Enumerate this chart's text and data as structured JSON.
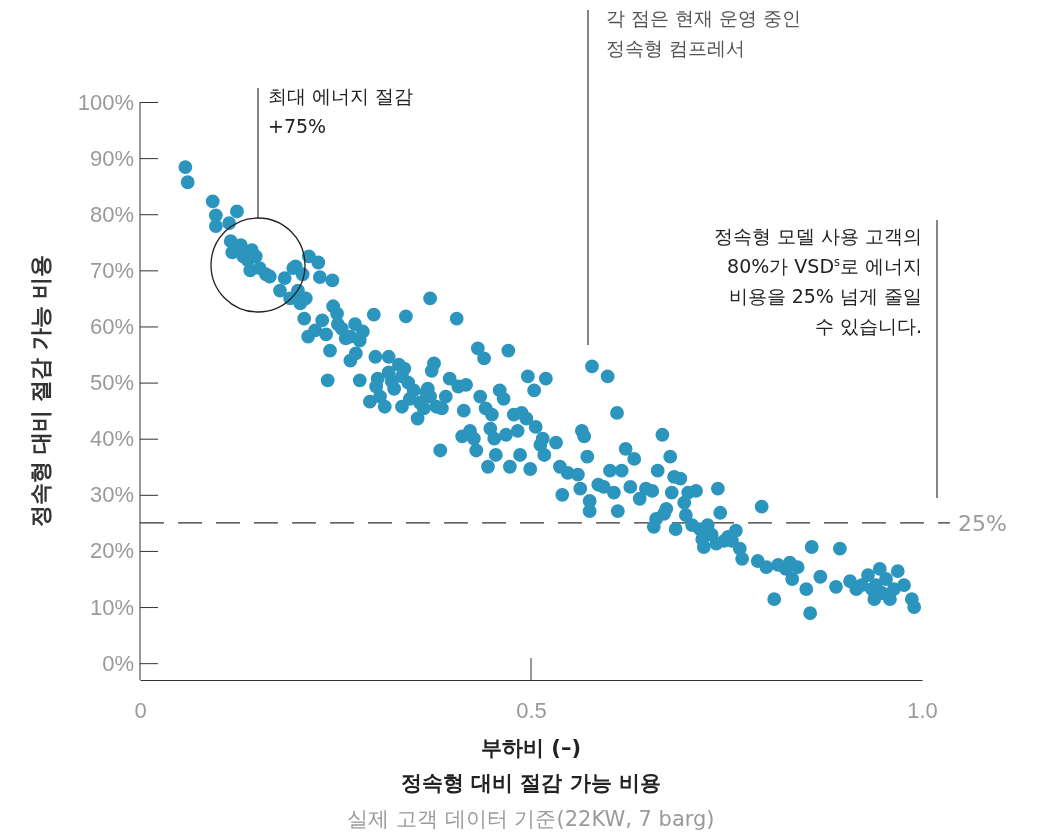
{
  "chart_data": {
    "type": "scatter",
    "title": "정속형 대비 절감 가능 비용",
    "subtitle": "실제 고객 데이터 기준(22KW, 7 barg)",
    "xlabel": "부하비 (–)",
    "ylabel": "정속형 대비 절감 가능 비용",
    "xlim": [
      0,
      1.0
    ],
    "xticks": [
      0,
      0.5,
      {
        "value": 1.0,
        "label": "1.0"
      }
    ],
    "ylim": [
      -3,
      100
    ],
    "yticks": [
      {
        "value": 0,
        "label": "0%"
      },
      {
        "value": 10,
        "label": "10%"
      },
      {
        "value": 20,
        "label": "20%"
      },
      {
        "value": 30,
        "label": "30%"
      },
      {
        "value": 40,
        "label": "40%"
      },
      {
        "value": 50,
        "label": "50%"
      },
      {
        "value": 60,
        "label": "60%"
      },
      {
        "value": 70,
        "label": "70%"
      },
      {
        "value": 80,
        "label": "80%"
      },
      {
        "value": 90,
        "label": "90%"
      },
      {
        "value": 100,
        "label": "100%"
      }
    ],
    "grid": false,
    "marker": "circle",
    "ref_lines": [
      {
        "axis": "y",
        "value": 25,
        "label": "25%",
        "line_style": "dashed",
        "color": "#333333"
      }
    ],
    "annotations": [
      "최대 에너지 절감\n+75%",
      "각 점은 현재 운영 중인\n정속형 컴프레서",
      "정속형 모델 사용 고객의\n80%가 VSD$^{s}$로 에너지\n비용을 25% 넘게 줄일\n수 있습니다."
    ],
    "series": [
      {
        "color": "#2b95bd",
        "x": [
          0.058,
          0.061,
          0.093,
          0.097,
          0.097,
          0.114,
          0.124,
          0.116,
          0.118,
          0.129,
          0.132,
          0.138,
          0.143,
          0.148,
          0.141,
          0.153,
          0.161,
          0.166,
          0.179,
          0.185,
          0.196,
          0.199,
          0.192,
          0.202,
          0.208,
          0.205,
          0.212,
          0.216,
          0.228,
          0.23,
          0.246,
          0.21,
          0.215,
          0.224,
          0.233,
          0.238,
          0.243,
          0.247,
          0.252,
          0.253,
          0.258,
          0.263,
          0.24,
          0.269,
          0.275,
          0.281,
          0.285,
          0.269,
          0.276,
          0.281,
          0.299,
          0.301,
          0.304,
          0.294,
          0.302,
          0.313,
          0.307,
          0.318,
          0.318,
          0.322,
          0.325,
          0.331,
          0.335,
          0.338,
          0.34,
          0.343,
          0.335,
          0.345,
          0.35,
          0.355,
          0.358,
          0.363,
          0.366,
          0.368,
          0.371,
          0.373,
          0.376,
          0.371,
          0.379,
          0.384,
          0.386,
          0.391,
          0.396,
          0.405,
          0.407,
          0.412,
          0.414,
          0.417,
          0.422,
          0.427,
          0.43,
          0.432,
          0.435,
          0.44,
          0.442,
          0.445,
          0.448,
          0.45,
          0.453,
          0.455,
          0.46,
          0.465,
          0.468,
          0.471,
          0.473,
          0.478,
          0.483,
          0.486,
          0.488,
          0.494,
          0.496,
          0.499,
          0.504,
          0.506,
          0.512,
          0.515,
          0.519,
          0.517,
          0.532,
          0.537,
          0.54,
          0.547,
          0.56,
          0.563,
          0.565,
          0.568,
          0.572,
          0.575,
          0.575,
          0.578,
          0.586,
          0.593,
          0.598,
          0.601,
          0.606,
          0.61,
          0.611,
          0.616,
          0.621,
          0.627,
          0.632,
          0.639,
          0.647,
          0.655,
          0.657,
          0.66,
          0.662,
          0.668,
          0.67,
          0.673,
          0.678,
          0.68,
          0.683,
          0.685,
          0.691,
          0.696,
          0.698,
          0.701,
          0.706,
          0.711,
          0.716,
          0.719,
          0.721,
          0.726,
          0.731,
          0.737,
          0.739,
          0.742,
          0.747,
          0.752,
          0.757,
          0.762,
          0.767,
          0.77,
          0.79,
          0.795,
          0.801,
          0.811,
          0.816,
          0.826,
          0.831,
          0.834,
          0.841,
          0.852,
          0.857,
          0.859,
          0.87,
          0.89,
          0.895,
          0.908,
          0.916,
          0.923,
          0.931,
          0.936,
          0.939,
          0.941,
          0.946,
          0.949,
          0.954,
          0.959,
          0.964,
          0.969,
          0.977,
          0.987,
          0.99
        ],
        "values": [
          88.4,
          85.7,
          82.3,
          79.8,
          77.9,
          78.4,
          80.5,
          75.2,
          73.2,
          74.5,
          72.5,
          71.8,
          73.6,
          72.5,
          70.0,
          70.4,
          69.3,
          68.9,
          66.4,
          68.6,
          70.4,
          70.7,
          65.0,
          66.4,
          69.3,
          64.1,
          65.0,
          72.5,
          71.4,
          68.8,
          68.2,
          61.4,
          58.2,
          59.3,
          61.1,
          58.6,
          55.7,
          63.6,
          62.3,
          60.4,
          59.6,
          57.9,
          50.4,
          58.2,
          60.4,
          57.5,
          59.1,
          53.9,
          55.2,
          50.4,
          62.1,
          54.6,
          50.7,
          46.6,
          49.3,
          45.7,
          47.5,
          54.6,
          51.8,
          50.2,
          48.9,
          53.2,
          51.1,
          52.5,
          61.8,
          50.0,
          45.7,
          47.1,
          48.6,
          43.6,
          46.4,
          45.4,
          48.2,
          48.9,
          65.0,
          52.1,
          53.4,
          47.5,
          45.7,
          37.9,
          45.4,
          47.5,
          50.7,
          61.4,
          49.3,
          40.4,
          45.0,
          49.6,
          41.4,
          40.0,
          37.9,
          56.1,
          47.5,
          54.3,
          45.4,
          35.0,
          41.8,
          44.3,
          40.0,
          37.1,
          48.6,
          47.1,
          40.7,
          55.7,
          35.0,
          44.3,
          41.4,
          37.1,
          44.6,
          43.6,
          51.1,
          34.6,
          48.6,
          42.1,
          38.9,
          40.0,
          50.7,
          37.1,
          39.3,
          35.0,
          30.0,
          33.9,
          33.6,
          31.1,
          41.4,
          40.4,
          36.8,
          28.9,
          27.1,
          52.9,
          31.8,
          31.4,
          51.1,
          34.3,
          30.4,
          44.6,
          27.1,
          34.3,
          38.2,
          31.4,
          36.4,
          29.3,
          31.1,
          30.7,
          24.3,
          25.7,
          34.3,
          40.7,
          26.6,
          27.5,
          36.8,
          30.4,
          33.2,
          23.9,
          32.9,
          28.6,
          26.4,
          30.4,
          24.6,
          30.7,
          23.9,
          22.1,
          20.7,
          24.6,
          22.9,
          21.3,
          31.1,
          26.8,
          21.8,
          22.5,
          21.8,
          23.6,
          20.4,
          18.6,
          18.2,
          27.9,
          17.1,
          11.4,
          17.5,
          16.8,
          17.9,
          15.0,
          17.1,
          13.2,
          8.9,
          20.7,
          15.4,
          13.6,
          20.4,
          14.6,
          13.2,
          13.9,
          15.7,
          13.2,
          11.4,
          13.9,
          16.8,
          12.5,
          15.0,
          11.4,
          13.2,
          16.4,
          13.9,
          11.4,
          10.0
        ]
      }
    ]
  }
}
